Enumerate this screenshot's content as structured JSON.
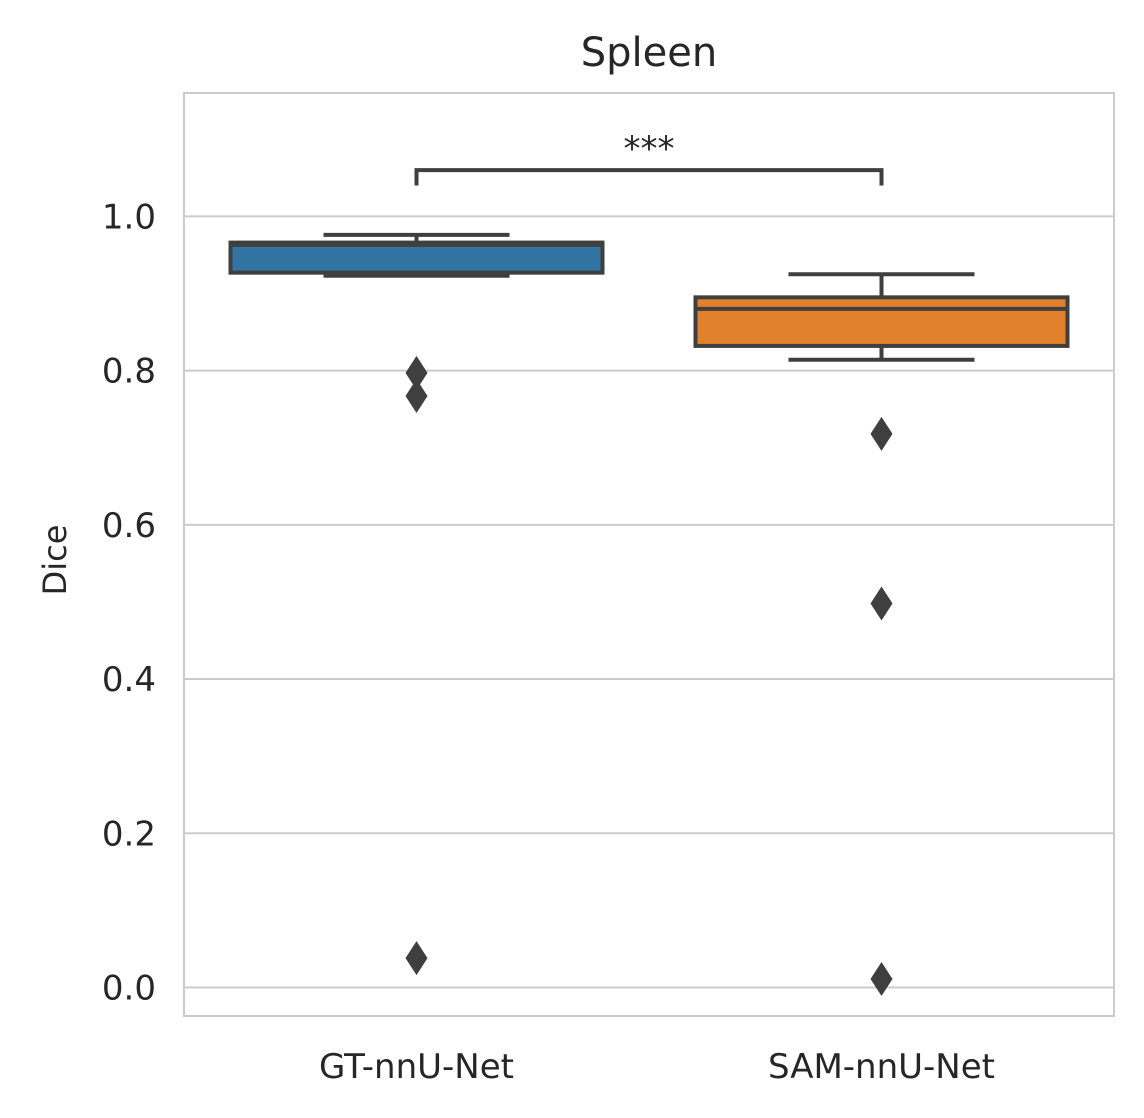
{
  "chart_data": {
    "type": "box",
    "title": "Spleen",
    "xlabel": "",
    "ylabel": "Dice",
    "ylim": [
      -0.037,
      1.16
    ],
    "yticks": [
      "0.0",
      "0.2",
      "0.4",
      "0.6",
      "0.8",
      "1.0"
    ],
    "grid": "horizontal",
    "categories": [
      "GT-nnU-Net",
      "SAM-nnU-Net"
    ],
    "boxes": [
      {
        "category": "GT-nnU-Net",
        "color": "#3274a1",
        "whisker_low": 0.923,
        "q1": 0.927,
        "median": 0.963,
        "q3": 0.966,
        "whisker_high": 0.976,
        "outliers": [
          0.797,
          0.767,
          0.038
        ]
      },
      {
        "category": "SAM-nnU-Net",
        "color": "#e1812c",
        "whisker_low": 0.814,
        "q1": 0.832,
        "median": 0.88,
        "q3": 0.895,
        "whisker_high": 0.925,
        "outliers": [
          0.718,
          0.498,
          0.011
        ]
      }
    ],
    "annotation": {
      "between": [
        "GT-nnU-Net",
        "SAM-nnU-Net"
      ],
      "text": "***"
    }
  }
}
